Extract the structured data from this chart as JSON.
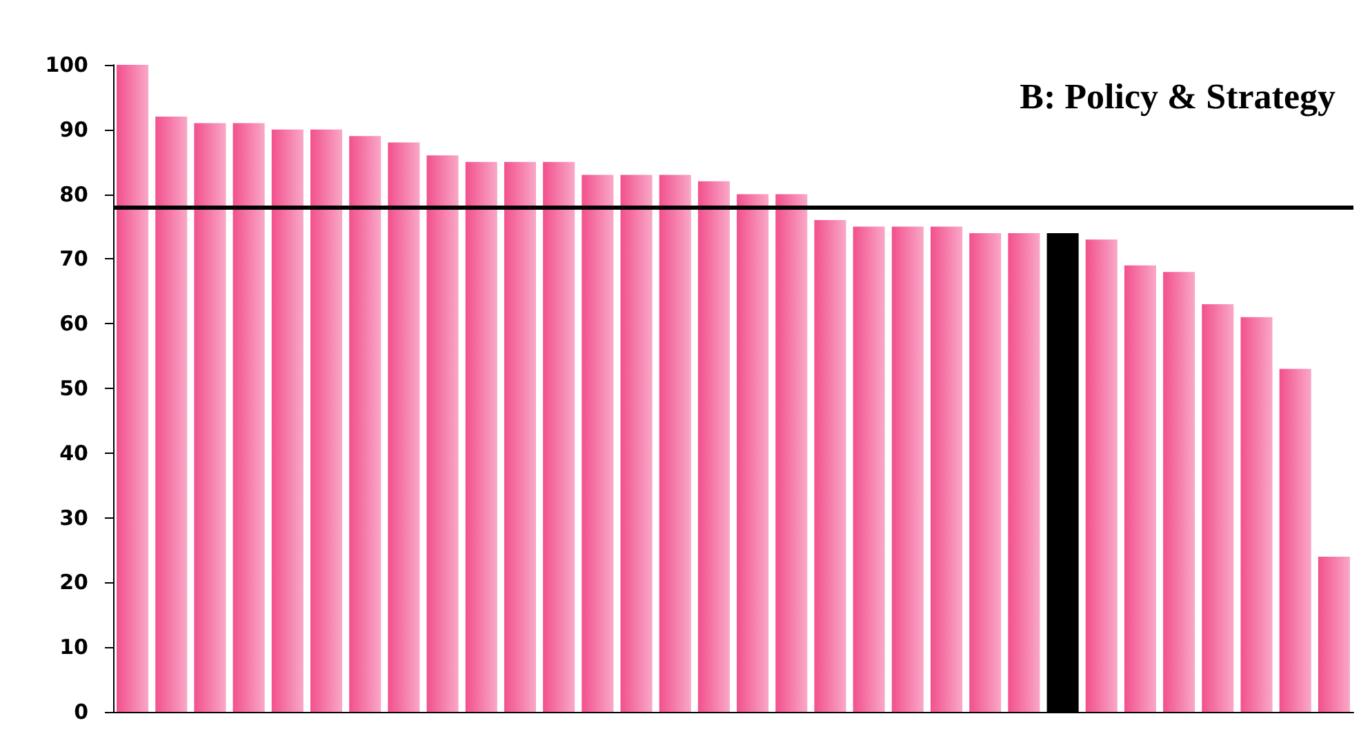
{
  "chart_data": {
    "type": "bar",
    "title": "B: Policy & Strategy",
    "categories": [
      null,
      null,
      null,
      null,
      null,
      null,
      null,
      null,
      null,
      null,
      null,
      null,
      null,
      null,
      null,
      null,
      null,
      null,
      null,
      null,
      null,
      null,
      null,
      null,
      null,
      null,
      null,
      null,
      null,
      null,
      null,
      null
    ],
    "values": [
      100,
      92,
      91,
      91,
      90,
      90,
      89,
      88,
      86,
      85,
      85,
      85,
      83,
      83,
      83,
      82,
      80,
      80,
      76,
      75,
      75,
      75,
      74,
      74,
      74,
      73,
      69,
      68,
      63,
      61,
      53,
      24
    ],
    "colors": [
      "#f2508c",
      "#f2508c",
      "#f2508c",
      "#f2508c",
      "#f2508c",
      "#f2508c",
      "#f2508c",
      "#f2508c",
      "#f2508c",
      "#f2508c",
      "#f2508c",
      "#f2508c",
      "#f2508c",
      "#f2508c",
      "#f2508c",
      "#f2508c",
      "#f2508c",
      "#f2508c",
      "#f2508c",
      "#f2508c",
      "#f2508c",
      "#f2508c",
      "#f2508c",
      "#f2508c",
      "#000000",
      "#f2508c",
      "#f2508c",
      "#f2508c",
      "#f2508c",
      "#f2508c",
      "#f2508c",
      "#f2508c"
    ],
    "ylim": [
      0,
      100
    ],
    "yticks": [
      0,
      10,
      20,
      30,
      40,
      50,
      60,
      70,
      80,
      90,
      100
    ],
    "ref_lines": [
      {
        "axis": "y",
        "value": 78,
        "color": "#000000"
      }
    ],
    "grid": false
  }
}
